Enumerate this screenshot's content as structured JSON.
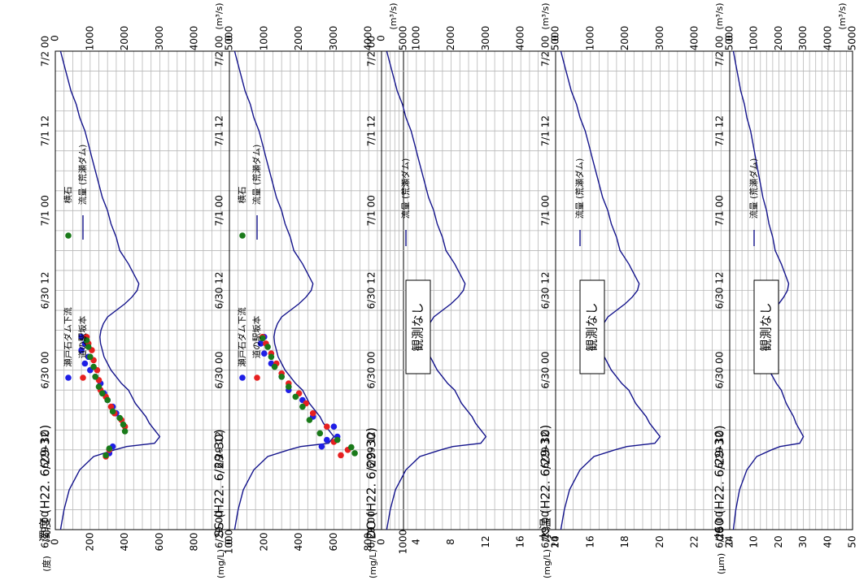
{
  "chart_data": [
    {
      "type": "line",
      "title": "濁度 (H22. 6/29-30)",
      "left_unit": "(度)",
      "right_unit": "(m³/s)",
      "x_ticks": [
        "6/29 00",
        "6/29 12",
        "6/30 00",
        "6/30 12",
        "7/1 00",
        "7/1 12",
        "7/2 00"
      ],
      "left_ticks": [
        "0",
        "200",
        "400",
        "600",
        "800",
        "1000"
      ],
      "right_ticks": [
        "0",
        "1000",
        "2000",
        "3000",
        "4000",
        "5000"
      ],
      "left_range": [
        0,
        1000
      ],
      "right_range": [
        0,
        5000
      ],
      "grid": true,
      "series": [
        {
          "name": "瀬戸石ダム下流",
          "color": "#1f1fe6",
          "kind": "scatter",
          "x": [
            11.5,
            12.5,
            17.5,
            18.5,
            19.5,
            20.5,
            22,
            23,
            24,
            25,
            26,
            27,
            28,
            29
          ],
          "y": [
            310,
            330,
            350,
            330,
            300,
            280,
            260,
            230,
            200,
            170,
            190,
            150,
            170,
            150
          ]
        },
        {
          "name": "道の駅坂本",
          "color": "#e62020",
          "kind": "scatter",
          "x": [
            11,
            12,
            15.5,
            16.5,
            17.5,
            18.5,
            20,
            21,
            22.5,
            24,
            25.5,
            27,
            28,
            29
          ],
          "y": [
            290,
            310,
            400,
            380,
            340,
            320,
            290,
            260,
            250,
            240,
            220,
            210,
            190,
            180
          ]
        },
        {
          "name": "横石",
          "color": "#1a7a1a",
          "kind": "scatter",
          "x": [
            11.2,
            12.2,
            14.8,
            15.8,
            16.8,
            17.8,
            19.5,
            20.5,
            21.5,
            23,
            24.5,
            26,
            27.5,
            28.5
          ],
          "y": [
            290,
            310,
            400,
            390,
            370,
            330,
            300,
            270,
            250,
            230,
            220,
            200,
            190,
            180
          ]
        }
      ],
      "flow_series_name": "流量 (荒瀬ダム)",
      "no_data": ""
    },
    {
      "type": "line",
      "title": "SS (H22. 6/29-30)",
      "left_unit": "(mg/L)",
      "right_unit": "(m³/s)",
      "x_ticks": [
        "6/29 00",
        "6/29 12",
        "6/30 00",
        "6/30 12",
        "7/1 00",
        "7/1 12",
        "7/2 00"
      ],
      "left_ticks": [
        "0",
        "200",
        "400",
        "600",
        "800",
        "1000"
      ],
      "right_ticks": [
        "0",
        "1000",
        "2000",
        "3000",
        "4000",
        "5000"
      ],
      "left_range": [
        0,
        1000
      ],
      "right_range": [
        0,
        5000
      ],
      "grid": true,
      "series": [
        {
          "name": "瀬戸石ダム下流",
          "color": "#1f1fe6",
          "kind": "scatter",
          "x": [
            12.5,
            13.5,
            14,
            15.5,
            17,
            19.5,
            21,
            23,
            25,
            26.5,
            28,
            29
          ],
          "y": [
            530,
            560,
            620,
            600,
            480,
            420,
            340,
            300,
            240,
            200,
            180,
            200
          ]
        },
        {
          "name": "道の駅坂本",
          "color": "#e62020",
          "kind": "scatter",
          "x": [
            11.2,
            12,
            13.2,
            15.5,
            17.5,
            19,
            20.5,
            22,
            23.5,
            25,
            26.5,
            28,
            29
          ],
          "y": [
            640,
            680,
            600,
            560,
            480,
            440,
            400,
            340,
            300,
            270,
            240,
            210,
            190
          ]
        },
        {
          "name": "横石",
          "color": "#1a7a1a",
          "kind": "scatter",
          "x": [
            11.5,
            12.4,
            13.5,
            14.5,
            16.5,
            18.5,
            20,
            21.5,
            23,
            24.5,
            26,
            27.5,
            28.8
          ],
          "y": [
            720,
            700,
            620,
            520,
            460,
            420,
            380,
            340,
            300,
            260,
            240,
            220,
            190
          ]
        }
      ],
      "flow_series_name": "流量 (荒瀬ダム)",
      "no_data": ""
    },
    {
      "type": "line",
      "title": "DO (H22. 6/29-30)",
      "left_unit": "(mg/L)",
      "right_unit": "(m³/s)",
      "x_ticks": [
        "6/29 00",
        "6/29 12",
        "6/30 00",
        "6/30 12",
        "7/1 00",
        "7/1 12",
        "7/2 00"
      ],
      "left_ticks": [
        "0",
        "4",
        "8",
        "12",
        "16",
        "20"
      ],
      "right_ticks": [
        "0",
        "1000",
        "2000",
        "3000",
        "4000",
        "5000"
      ],
      "left_range": [
        0,
        20
      ],
      "right_range": [
        0,
        5000
      ],
      "grid": true,
      "series": [],
      "flow_series_name": "流量 (荒瀬ダム)",
      "no_data": "観測なし"
    },
    {
      "type": "line",
      "title": "水温 (H22. 6/29-30)",
      "left_unit": "(mg/L)",
      "right_unit": "(m³/s)",
      "x_ticks": [
        "6/29 00",
        "6/29 12",
        "6/30 00",
        "6/30 12",
        "7/1 00",
        "7/1 12",
        "7/2 00"
      ],
      "left_ticks": [
        "14",
        "16",
        "18",
        "20",
        "22",
        "24"
      ],
      "right_ticks": [
        "0",
        "1000",
        "2000",
        "3000",
        "4000",
        "5000"
      ],
      "left_range": [
        14,
        24
      ],
      "right_range": [
        0,
        5000
      ],
      "grid": true,
      "series": [],
      "flow_series_name": "流量 (荒瀬ダム)",
      "no_data": "観測なし"
    },
    {
      "type": "line",
      "title": "d60 (H22. 6/29-30)",
      "left_unit": "(μm)",
      "right_unit": "(m³/s)",
      "x_ticks": [
        "6/29 00",
        "6/29 12",
        "6/30 00",
        "6/30 12",
        "7/1 00",
        "7/1 12",
        "7/2 00"
      ],
      "left_ticks": [
        "0",
        "10",
        "20",
        "30",
        "40",
        "50"
      ],
      "right_ticks": [
        "0",
        "1000",
        "2000",
        "3000",
        "4000",
        "5000"
      ],
      "left_range": [
        0,
        50
      ],
      "right_range": [
        0,
        5000
      ],
      "grid": true,
      "series": [],
      "flow_series_name": "流量 (荒瀬ダム)",
      "no_data": "観測なし"
    }
  ],
  "flow": {
    "hours": [
      0,
      3,
      6,
      9,
      11,
      12,
      12.5,
      13,
      14,
      15,
      16,
      17,
      18,
      19,
      20,
      21,
      22,
      23,
      24,
      25,
      26,
      27,
      28,
      29,
      30,
      31,
      32,
      33,
      34,
      35,
      36,
      37,
      38,
      40,
      42,
      44,
      46,
      48,
      50,
      52,
      54,
      56,
      58,
      60,
      62,
      64,
      66,
      68,
      70,
      72
    ],
    "m3s": [
      150,
      250,
      400,
      700,
      1100,
      1700,
      2050,
      2850,
      3000,
      2850,
      2700,
      2600,
      2450,
      2300,
      2200,
      2100,
      1900,
      1750,
      1600,
      1500,
      1400,
      1350,
      1300,
      1280,
      1310,
      1380,
      1500,
      1750,
      2000,
      2200,
      2350,
      2400,
      2300,
      2100,
      1850,
      1750,
      1600,
      1500,
      1350,
      1250,
      1150,
      1050,
      950,
      850,
      700,
      600,
      450,
      350,
      250,
      150
    ]
  },
  "colors": {
    "flow_line": "#14148c",
    "grid": "#b8b8b8",
    "frame": "#000000"
  }
}
